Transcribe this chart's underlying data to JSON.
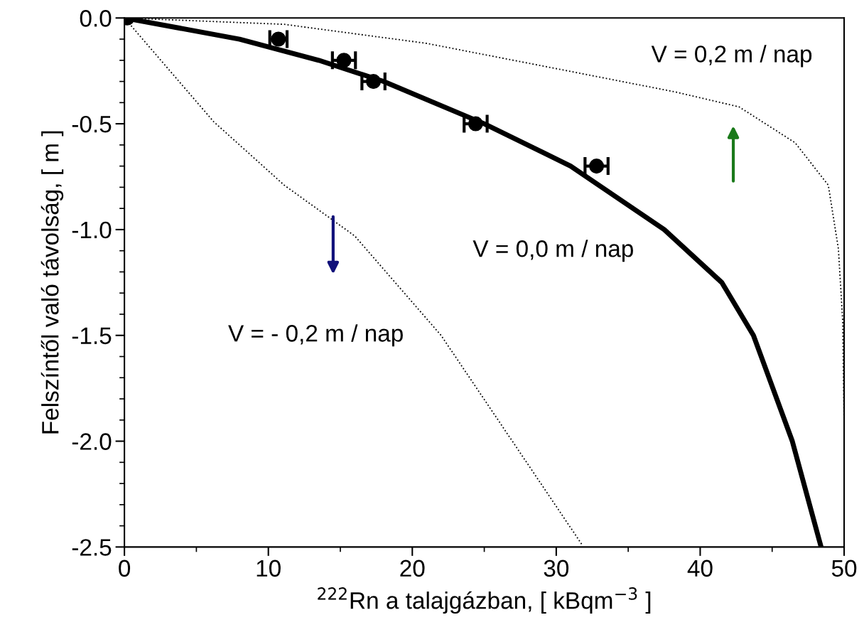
{
  "chart_data": {
    "type": "line",
    "xlabel": "$^{222}$Rn a talajgázban, [ kBqm$^{−3}$ ]",
    "ylabel": "Felszíntől való távolság, [ m ]",
    "xlim": [
      0,
      50
    ],
    "ylim": [
      -2.5,
      0
    ],
    "xticks": [
      0,
      10,
      20,
      30,
      40,
      50
    ],
    "yticks": [
      {
        "value": 0.0,
        "label": "0.0"
      },
      {
        "value": -0.5,
        "label": "-0.5"
      },
      {
        "value": -1.0,
        "label": "-1.0"
      },
      {
        "value": -1.5,
        "label": "-1.5"
      },
      {
        "value": -2.0,
        "label": "-2.0"
      },
      {
        "value": -2.5,
        "label": "-2.5"
      }
    ],
    "grid": false,
    "series": [
      {
        "type": "scatter",
        "color": "#000000",
        "marker": "circle",
        "x": [
          0.2,
          10.7,
          15.25,
          17.3,
          24.4,
          32.8
        ],
        "values": [
          0,
          -0.1,
          -0.2,
          -0.3,
          -0.5,
          -0.7
        ],
        "xerrors": [
          null,
          0.6,
          0.8,
          0.8,
          0.8,
          0.8
        ]
      },
      {
        "color": "#000000",
        "line_style": "solid",
        "x": [
          0,
          8,
          13.5,
          18,
          25,
          31,
          37.5,
          41.5,
          43.7,
          46.4,
          48.4
        ],
        "values": [
          0,
          -0.1,
          -0.2,
          -0.3,
          -0.5,
          -0.7,
          -1.0,
          -1.25,
          -1.5,
          -2.0,
          -2.5
        ]
      },
      {
        "color": "#000000",
        "line_style": "dotted",
        "x": [
          0,
          11.1,
          21,
          30.8,
          38.3,
          42.7,
          46.6,
          48.9,
          49.6,
          49.9,
          50
        ],
        "values": [
          0,
          -0.03,
          -0.12,
          -0.25,
          -0.35,
          -0.42,
          -0.59,
          -0.79,
          -1.09,
          -1.43,
          -1.93
        ]
      },
      {
        "color": "#000000",
        "line_style": "dotted",
        "x": [
          0,
          6.2,
          11.1,
          16,
          22,
          31.8
        ],
        "values": [
          0,
          -0.49,
          -0.79,
          -1.03,
          -1.5,
          -2.49
        ]
      }
    ],
    "annotations": [
      "V = 0,2 m / nap",
      "V = 0,0 m / nap",
      "V = - 0,2 m / nap"
    ]
  }
}
